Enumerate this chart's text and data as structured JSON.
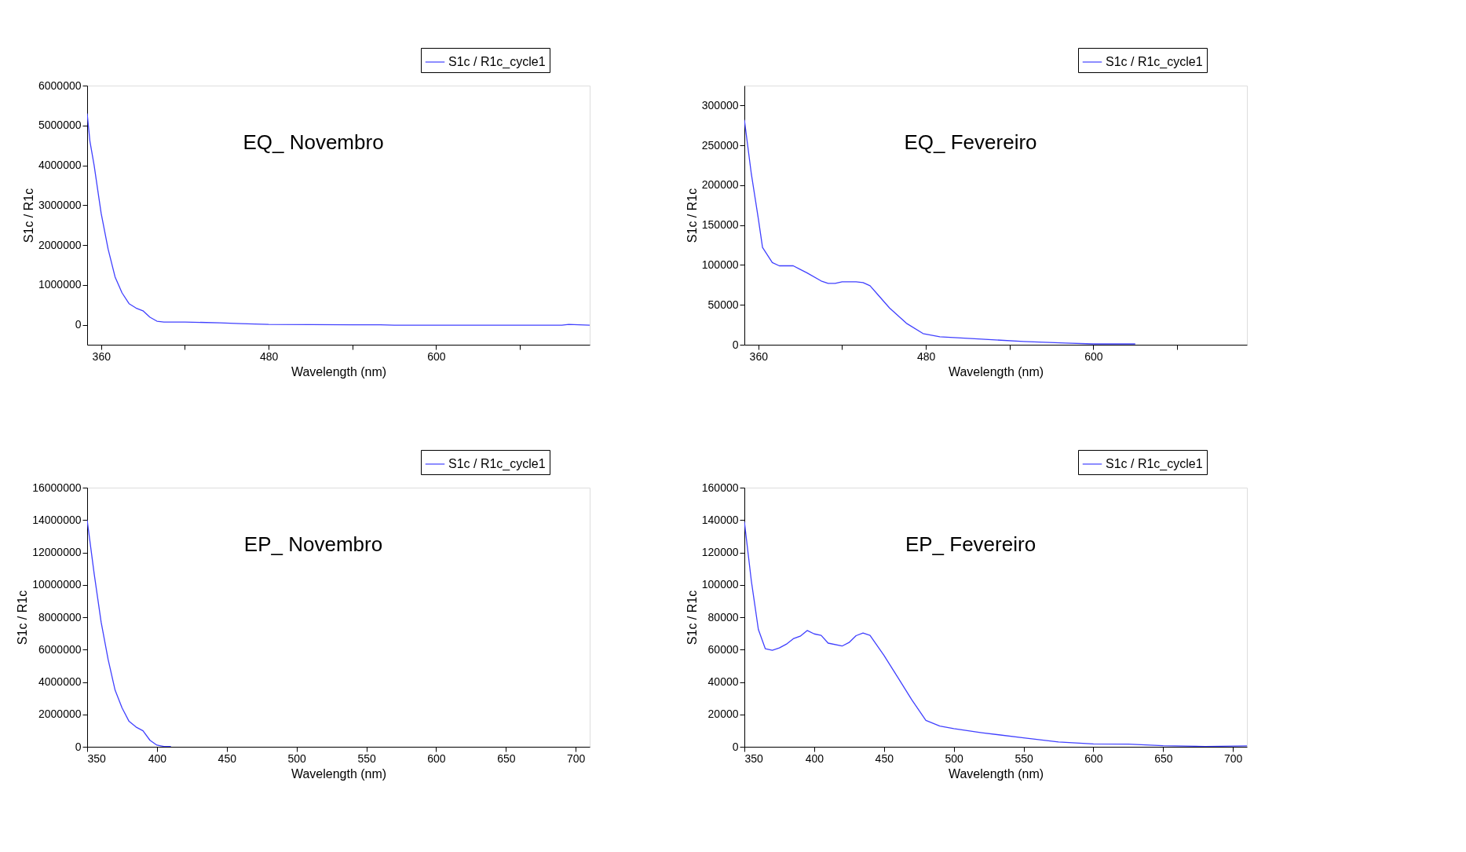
{
  "chart_data": [
    {
      "type": "line",
      "title": "EQ_ Novembro",
      "xlabel": "Wavelength (nm)",
      "ylabel": "S1c / R1c",
      "legend": "top right",
      "grid": false,
      "marker": "none",
      "line_style": "solid",
      "xlim": [
        350,
        710
      ],
      "xticks": [
        360,
        {
          "value": 420,
          "label": null
        },
        480,
        {
          "value": 540,
          "label": null
        },
        600,
        {
          "value": 660,
          "label": null
        }
      ],
      "ylim": [
        -500000,
        6000000
      ],
      "yticks": [
        0,
        1000000,
        2000000,
        3000000,
        4000000,
        5000000,
        6000000
      ],
      "series": [
        {
          "name": "S1c / R1c_cycle1",
          "color": "#4040ff",
          "x": [
            350,
            352,
            355,
            360,
            365,
            370,
            375,
            380,
            385,
            390,
            395,
            400,
            405,
            420,
            445,
            460,
            480,
            540,
            560,
            570,
            600,
            660,
            690,
            695,
            710
          ],
          "values": [
            5300000,
            4600000,
            4000000,
            2800000,
            1900000,
            1200000,
            800000,
            530000,
            420000,
            350000,
            190000,
            90000,
            70000,
            70000,
            50000,
            30000,
            10000,
            0,
            0,
            -10000,
            -10000,
            -10000,
            -10000,
            10000,
            -10000
          ]
        }
      ]
    },
    {
      "type": "line",
      "title": "EQ_ Fevereiro",
      "xlabel": "Wavelength (nm)",
      "ylabel": "S1c / R1c",
      "legend": "top right",
      "grid": false,
      "marker": "none",
      "line_style": "solid",
      "xlim": [
        350,
        710
      ],
      "xticks": [
        360,
        {
          "value": 420,
          "label": null
        },
        480,
        {
          "value": 540,
          "label": null
        },
        600,
        {
          "value": 660,
          "label": null
        }
      ],
      "ylim": [
        0,
        325000
      ],
      "yticks": [
        0,
        50000,
        100000,
        150000,
        200000,
        250000,
        300000
      ],
      "series": [
        {
          "name": "S1c / R1c_cycle1",
          "color": "#4040ff",
          "x": [
            350,
            355,
            360,
            363,
            370,
            375,
            385,
            395,
            405,
            410,
            415,
            420,
            425,
            430,
            435,
            440,
            445,
            454,
            466,
            478,
            490,
            520,
            550,
            580,
            600,
            620,
            630
          ],
          "values": [
            282000,
            214000,
            158000,
            122000,
            103000,
            99000,
            99000,
            90000,
            80000,
            77000,
            77000,
            79000,
            79000,
            79000,
            78000,
            74000,
            64000,
            46000,
            27000,
            14000,
            10000,
            7000,
            4000,
            2000,
            1000,
            1000,
            1000
          ]
        }
      ]
    },
    {
      "type": "line",
      "title": "EP_ Novembro",
      "xlabel": "Wavelength (nm)",
      "ylabel": "S1c / R1c",
      "legend": "top right",
      "grid": false,
      "marker": "none",
      "line_style": "solid",
      "xlim": [
        350,
        710
      ],
      "xticks": [
        350,
        400,
        450,
        500,
        550,
        600,
        650,
        700
      ],
      "ylim": [
        0,
        16000000
      ],
      "yticks": [
        0,
        2000000,
        4000000,
        6000000,
        8000000,
        10000000,
        12000000,
        14000000,
        16000000
      ],
      "series": [
        {
          "name": "S1c / R1c_cycle1",
          "color": "#4040ff",
          "x": [
            350,
            355,
            360,
            365,
            370,
            375,
            380,
            385,
            390,
            395,
            400,
            405,
            410
          ],
          "values": [
            14000000,
            10700000,
            7700000,
            5400000,
            3500000,
            2400000,
            1570000,
            1220000,
            990000,
            400000,
            100000,
            20000,
            20000
          ]
        }
      ]
    },
    {
      "type": "line",
      "title": "EP_ Fevereiro",
      "xlabel": "Wavelength (nm)",
      "ylabel": "S1c / R1c",
      "legend": "top right",
      "grid": false,
      "marker": "none",
      "line_style": "solid",
      "xlim": [
        350,
        710
      ],
      "xticks": [
        350,
        400,
        450,
        500,
        550,
        600,
        650,
        700
      ],
      "ylim": [
        0,
        160000
      ],
      "yticks": [
        0,
        20000,
        40000,
        60000,
        80000,
        100000,
        120000,
        140000,
        160000
      ],
      "series": [
        {
          "name": "S1c / R1c_cycle1",
          "color": "#4040ff",
          "x": [
            350,
            355,
            360,
            365,
            370,
            375,
            380,
            385,
            390,
            395,
            400,
            405,
            410,
            420,
            425,
            430,
            435,
            440,
            450,
            460,
            470,
            480,
            490,
            500,
            520,
            550,
            575,
            600,
            625,
            650,
            680,
            710
          ],
          "values": [
            139000,
            102300,
            72500,
            60500,
            59600,
            61000,
            63300,
            66700,
            68300,
            71800,
            69700,
            68800,
            64000,
            62200,
            64400,
            68600,
            70200,
            68800,
            56400,
            42700,
            28900,
            16300,
            12800,
            11200,
            8700,
            5500,
            3000,
            1800,
            1600,
            700,
            200,
            500
          ]
        }
      ]
    }
  ]
}
